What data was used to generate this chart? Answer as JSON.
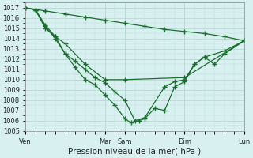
{
  "background_color": "#d8f0f0",
  "grid_color": "#b8d8d8",
  "line_color": "#1a6e2e",
  "marker_style": "+",
  "marker_size": 4,
  "xtick_labels": [
    "Ven",
    "Mar",
    "Sam",
    "Dim",
    "Lun"
  ],
  "xtick_positions": [
    0,
    4,
    5,
    8,
    11
  ],
  "ylim": [
    1005,
    1017.5
  ],
  "xlabel": "Pression niveau de la mer( hPa )",
  "xlabel_fontsize": 7.5,
  "line1_x": [
    0,
    1,
    2,
    3,
    4,
    5,
    6,
    7,
    8,
    9,
    10,
    11
  ],
  "line1_y": [
    1017.0,
    1016.7,
    1016.4,
    1016.1,
    1015.8,
    1015.5,
    1015.2,
    1014.9,
    1014.7,
    1014.5,
    1014.2,
    1013.8
  ],
  "line2_x": [
    0,
    0.5,
    1,
    1.5,
    2,
    3,
    4,
    5,
    8,
    11
  ],
  "line2_y": [
    1017.0,
    1016.8,
    1015.0,
    1014.2,
    1013.5,
    1011.5,
    1010.0,
    1010.0,
    1010.2,
    1013.8
  ],
  "line3_x": [
    0,
    0.5,
    1,
    1.5,
    2,
    2.5,
    3,
    3.5,
    4,
    4.5,
    5,
    5.5,
    6,
    7,
    7.5,
    8,
    8.5,
    9,
    9.5,
    10,
    11
  ],
  "line3_y": [
    1017.0,
    1016.8,
    1015.3,
    1014.2,
    1012.5,
    1011.8,
    1011.0,
    1010.2,
    1009.7,
    1008.8,
    1008.0,
    1006.0,
    1006.3,
    1009.3,
    1009.8,
    1010.0,
    1011.5,
    1012.2,
    1011.5,
    1012.5,
    1013.8
  ],
  "line4_x": [
    0,
    0.5,
    1,
    1.5,
    2,
    2.5,
    3,
    3.5,
    4,
    4.5,
    5,
    5.3,
    5.7,
    6,
    6.5,
    7,
    7.5,
    8,
    8.5,
    9,
    10,
    11
  ],
  "line4_y": [
    1017.0,
    1016.8,
    1015.2,
    1014.0,
    1012.5,
    1011.2,
    1010.0,
    1009.5,
    1008.5,
    1007.5,
    1006.2,
    1005.8,
    1006.0,
    1006.2,
    1007.2,
    1007.0,
    1009.3,
    1009.8,
    1011.5,
    1012.2,
    1012.8,
    1013.8
  ]
}
